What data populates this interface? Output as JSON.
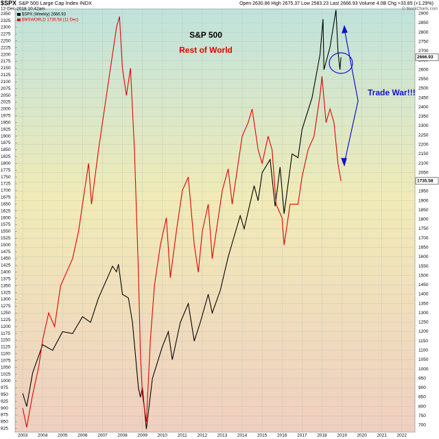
{
  "chart_data": {
    "type": "line",
    "symbol": "$SPX",
    "title": "S&P 500 Large Cap Index INDX",
    "date": "12-Dec-2018 10:42am",
    "quote": "Open 2630.86  High 2675.37  Low 2583.23  Last 2666.93  Volume 4.0B  Chg +33.85 (+1.29%)",
    "source": "© StockCharts.com",
    "annotations": [
      "S&P 500",
      "Rest of World",
      "Trade War!!!"
    ],
    "xlim": [
      2002.62,
      2022.66
    ],
    "xticks": [
      2003,
      2004,
      2005,
      2006,
      2007,
      2008,
      2009,
      2010,
      2011,
      2012,
      2013,
      2014,
      2015,
      2016,
      2017,
      2018,
      2019,
      2020,
      2021,
      2022
    ],
    "ylim": [
      812,
      2368
    ],
    "yticks": [
      825,
      850,
      875,
      900,
      925,
      950,
      975,
      1000,
      1025,
      1050,
      1075,
      1100,
      1125,
      1150,
      1175,
      1200,
      1225,
      1250,
      1275,
      1300,
      1325,
      1350,
      1375,
      1400,
      1425,
      1450,
      1475,
      1500,
      1525,
      1550,
      1575,
      1600,
      1625,
      1650,
      1675,
      1700,
      1725,
      1750,
      1775,
      1800,
      1825,
      1850,
      1875,
      1900,
      1925,
      1950,
      1975,
      2000,
      2025,
      2050,
      2075,
      2100,
      2125,
      2150,
      2175,
      2200,
      2225,
      2250,
      2275,
      2300,
      2325,
      2350
    ],
    "y2lim": [
      663,
      2925
    ],
    "y2ticks": [
      700,
      750,
      800,
      850,
      900,
      950,
      1000,
      1050,
      1100,
      1150,
      1200,
      1250,
      1300,
      1350,
      1400,
      1450,
      1500,
      1550,
      1600,
      1650,
      1700,
      1750,
      1800,
      1850,
      1900,
      1950,
      2000,
      2050,
      2100,
      2150,
      2200,
      2250,
      2300,
      2350,
      2400,
      2450,
      2500,
      2550,
      2600,
      2650,
      2700,
      2750,
      2800,
      2850,
      2900
    ],
    "grid": true,
    "series": [
      {
        "name": "$SPX (Weekly) 2666.93",
        "color": "#000000",
        "axis": "y2",
        "last_label": "2666.93",
        "x": [
          2003.0,
          2003.2,
          2003.5,
          2004.0,
          2004.5,
          2005.0,
          2005.5,
          2006.0,
          2006.4,
          2006.8,
          2007.3,
          2007.5,
          2007.7,
          2007.8,
          2008.0,
          2008.3,
          2008.5,
          2008.8,
          2008.9,
          2009.0,
          2009.2,
          2009.5,
          2010.0,
          2010.3,
          2010.5,
          2010.9,
          2011.3,
          2011.6,
          2011.9,
          2012.3,
          2012.5,
          2012.9,
          2013.3,
          2013.9,
          2014.1,
          2014.6,
          2014.8,
          2015.0,
          2015.4,
          2015.65,
          2015.9,
          2016.1,
          2016.5,
          2016.8,
          2017.0,
          2017.5,
          2017.9,
          2018.05,
          2018.1,
          2018.4,
          2018.7,
          2018.8,
          2018.9,
          2018.95
        ],
        "values": [
          870,
          800,
          980,
          1130,
          1100,
          1200,
          1190,
          1280,
          1250,
          1380,
          1500,
          1550,
          1520,
          1560,
          1400,
          1380,
          1250,
          900,
          850,
          900,
          680,
          950,
          1120,
          1200,
          1050,
          1250,
          1350,
          1150,
          1250,
          1400,
          1300,
          1420,
          1600,
          1820,
          1750,
          1980,
          1900,
          2050,
          2120,
          1870,
          2080,
          1830,
          2150,
          2130,
          2280,
          2450,
          2680,
          2870,
          2600,
          2720,
          2920,
          2700,
          2600,
          2666.93
        ]
      },
      {
        "name": "$MSWORLD 1735.58 (11 Dec)",
        "color": "#e00000",
        "axis": "y",
        "last_label": "1735.58",
        "x": [
          2003.0,
          2003.2,
          2003.5,
          2003.8,
          2004.0,
          2004.3,
          2004.6,
          2004.9,
          2005.2,
          2005.5,
          2005.8,
          2006.0,
          2006.3,
          2006.45,
          2006.8,
          2007.0,
          2007.3,
          2007.5,
          2007.7,
          2007.85,
          2008.0,
          2008.2,
          2008.4,
          2008.6,
          2008.8,
          2008.9,
          2009.0,
          2009.2,
          2009.4,
          2009.6,
          2009.9,
          2010.2,
          2010.4,
          2010.7,
          2011.0,
          2011.3,
          2011.6,
          2011.8,
          2012.0,
          2012.3,
          2012.5,
          2012.8,
          2013.0,
          2013.3,
          2013.5,
          2013.8,
          2014.0,
          2014.3,
          2014.5,
          2014.8,
          2015.0,
          2015.3,
          2015.5,
          2015.7,
          2016.0,
          2016.1,
          2016.4,
          2016.8,
          2017.0,
          2017.3,
          2017.6,
          2017.9,
          2018.0,
          2018.2,
          2018.4,
          2018.6,
          2018.8,
          2018.95
        ],
        "values": [
          900,
          830,
          950,
          1050,
          1150,
          1250,
          1200,
          1350,
          1400,
          1450,
          1550,
          1650,
          1800,
          1650,
          1850,
          1950,
          2100,
          2200,
          2300,
          2340,
          2150,
          2050,
          2150,
          1850,
          1400,
          1100,
          950,
          850,
          1150,
          1350,
          1500,
          1600,
          1380,
          1550,
          1700,
          1750,
          1500,
          1400,
          1550,
          1650,
          1450,
          1600,
          1700,
          1780,
          1650,
          1800,
          1900,
          1950,
          2000,
          1850,
          1800,
          1900,
          1850,
          1650,
          1600,
          1500,
          1650,
          1650,
          1750,
          1850,
          1900,
          2050,
          2120,
          1950,
          2000,
          1950,
          1800,
          1735.58
        ]
      }
    ]
  }
}
